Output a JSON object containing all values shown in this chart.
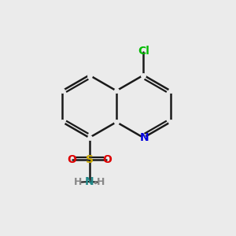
{
  "bg_color": "#ebebeb",
  "bond_color": "#1a1a1a",
  "bond_width": 1.8,
  "cl_color": "#00bb00",
  "n_color": "#0000dd",
  "s_color": "#ccaa00",
  "o_color": "#dd0000",
  "nh2_n_color": "#228888",
  "nh2_h_color": "#888888",
  "figsize": [
    3.0,
    3.0
  ],
  "dpi": 100,
  "xlim": [
    0,
    10
  ],
  "ylim": [
    0,
    10
  ]
}
